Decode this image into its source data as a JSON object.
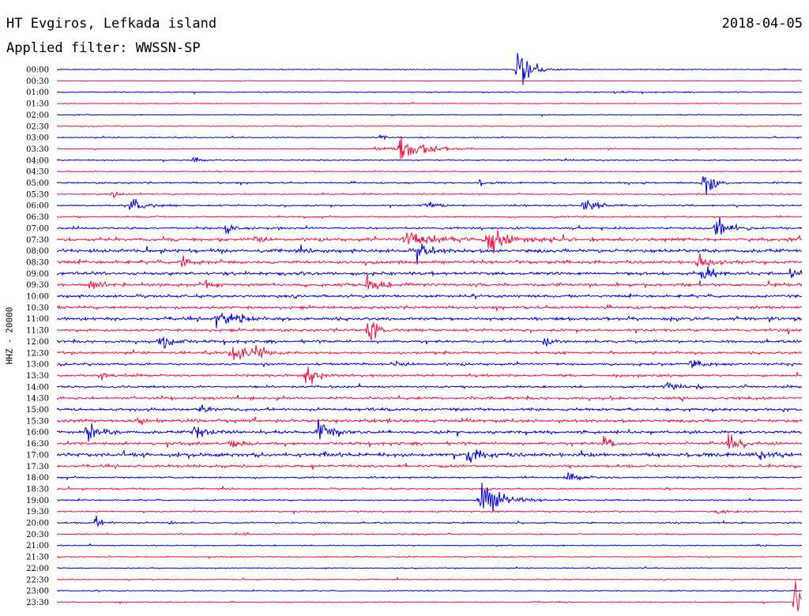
{
  "header": {
    "station": "HT Evgiros, Lefkada island",
    "filter": "Applied filter: WWSSN-SP",
    "date": "2018-04-05"
  },
  "axis_label": "HHZ - 20000",
  "colors": {
    "blue": "#0000dd",
    "red": "#ee1144"
  },
  "chart_data": {
    "type": "line",
    "title": "HT Evgiros, Lefkada island",
    "subtitle": "Applied filter: WWSSN-SP",
    "date": "2018-04-05",
    "ylabel": "HHZ - 20000",
    "row_labels": [
      "00:00",
      "00:30",
      "01:00",
      "01:30",
      "02:00",
      "02:30",
      "03:00",
      "03:30",
      "04:00",
      "04:30",
      "05:00",
      "05:30",
      "06:00",
      "06:30",
      "07:00",
      "07:30",
      "08:00",
      "08:30",
      "09:00",
      "09:30",
      "10:00",
      "10:30",
      "11:00",
      "11:30",
      "12:00",
      "12:30",
      "13:00",
      "13:30",
      "14:00",
      "14:30",
      "15:00",
      "15:30",
      "16:00",
      "16:30",
      "17:00",
      "17:30",
      "18:00",
      "18:30",
      "19:00",
      "19:30",
      "20:00",
      "20:30",
      "21:00",
      "21:30",
      "22:00",
      "22:30",
      "23:00",
      "23:30"
    ],
    "noise_level": [
      0.5,
      0.4,
      0.6,
      0.5,
      0.5,
      0.5,
      0.6,
      0.6,
      0.7,
      0.6,
      0.9,
      0.8,
      0.9,
      0.9,
      1.2,
      1.8,
      2.0,
      1.8,
      1.8,
      1.8,
      1.6,
      1.6,
      1.8,
      1.5,
      1.5,
      1.4,
      1.3,
      1.3,
      1.2,
      1.6,
      1.6,
      1.8,
      1.7,
      1.6,
      2.2,
      1.5,
      1.0,
      0.9,
      0.8,
      0.8,
      0.8,
      0.7,
      0.6,
      0.6,
      0.6,
      0.6,
      0.6,
      0.6
    ],
    "events": [
      {
        "row": 0,
        "minute": 18.5,
        "amp": 52,
        "dur": 1.2
      },
      {
        "row": 2,
        "minute": 22.5,
        "amp": 4,
        "dur": 0.6
      },
      {
        "row": 6,
        "minute": 13.0,
        "amp": 4,
        "dur": 1.0
      },
      {
        "row": 7,
        "minute": 13.8,
        "amp": 26,
        "dur": 2.2
      },
      {
        "row": 7,
        "minute": 12.8,
        "amp": 5,
        "dur": 1.4
      },
      {
        "row": 8,
        "minute": 5.5,
        "amp": 5,
        "dur": 0.6
      },
      {
        "row": 10,
        "minute": 26.0,
        "amp": 28,
        "dur": 1.0
      },
      {
        "row": 10,
        "minute": 17.0,
        "amp": 4,
        "dur": 1.0
      },
      {
        "row": 11,
        "minute": 2.2,
        "amp": 6,
        "dur": 0.6
      },
      {
        "row": 12,
        "minute": 3.0,
        "amp": 16,
        "dur": 1.2
      },
      {
        "row": 12,
        "minute": 14.8,
        "amp": 10,
        "dur": 1.0
      },
      {
        "row": 12,
        "minute": 21.2,
        "amp": 16,
        "dur": 1.2
      },
      {
        "row": 14,
        "minute": 6.8,
        "amp": 8,
        "dur": 1.0
      },
      {
        "row": 14,
        "minute": 26.5,
        "amp": 30,
        "dur": 1.0
      },
      {
        "row": 15,
        "minute": 14.0,
        "amp": 14,
        "dur": 3.0
      },
      {
        "row": 15,
        "minute": 17.3,
        "amp": 24,
        "dur": 2.0
      },
      {
        "row": 15,
        "minute": 8.0,
        "amp": 10,
        "dur": 0.6
      },
      {
        "row": 16,
        "minute": 14.5,
        "amp": 12,
        "dur": 1.5
      },
      {
        "row": 17,
        "minute": 5.0,
        "amp": 8,
        "dur": 1.0
      },
      {
        "row": 17,
        "minute": 25.8,
        "amp": 18,
        "dur": 1.0
      },
      {
        "row": 18,
        "minute": 26.0,
        "amp": 14,
        "dur": 1.0
      },
      {
        "row": 18,
        "minute": 29.5,
        "amp": 10,
        "dur": 0.6
      },
      {
        "row": 19,
        "minute": 1.3,
        "amp": 10,
        "dur": 1.2
      },
      {
        "row": 19,
        "minute": 12.5,
        "amp": 22,
        "dur": 1.0
      },
      {
        "row": 19,
        "minute": 6.0,
        "amp": 8,
        "dur": 0.5
      },
      {
        "row": 22,
        "minute": 6.4,
        "amp": 14,
        "dur": 1.2
      },
      {
        "row": 22,
        "minute": 7.0,
        "amp": 6,
        "dur": 1.5
      },
      {
        "row": 23,
        "minute": 12.5,
        "amp": 30,
        "dur": 0.8
      },
      {
        "row": 24,
        "minute": 4.2,
        "amp": 18,
        "dur": 1.0
      },
      {
        "row": 24,
        "minute": 19.6,
        "amp": 16,
        "dur": 1.0
      },
      {
        "row": 25,
        "minute": 7.0,
        "amp": 22,
        "dur": 1.5
      },
      {
        "row": 25,
        "minute": 8.0,
        "amp": 6,
        "dur": 1.5
      },
      {
        "row": 26,
        "minute": 13.5,
        "amp": 6,
        "dur": 1.0
      },
      {
        "row": 26,
        "minute": 25.5,
        "amp": 20,
        "dur": 1.0
      },
      {
        "row": 27,
        "minute": 10.0,
        "amp": 20,
        "dur": 1.0
      },
      {
        "row": 27,
        "minute": 1.8,
        "amp": 6,
        "dur": 1.0
      },
      {
        "row": 28,
        "minute": 24.5,
        "amp": 6,
        "dur": 1.5
      },
      {
        "row": 30,
        "minute": 5.8,
        "amp": 6,
        "dur": 1.0
      },
      {
        "row": 31,
        "minute": 3.2,
        "amp": 10,
        "dur": 1.0
      },
      {
        "row": 32,
        "minute": 1.2,
        "amp": 22,
        "dur": 1.2
      },
      {
        "row": 32,
        "minute": 5.5,
        "amp": 18,
        "dur": 1.2
      },
      {
        "row": 32,
        "minute": 10.5,
        "amp": 22,
        "dur": 1.2
      },
      {
        "row": 33,
        "minute": 7.0,
        "amp": 8,
        "dur": 1.0
      },
      {
        "row": 33,
        "minute": 22.0,
        "amp": 10,
        "dur": 1.2
      },
      {
        "row": 33,
        "minute": 27.0,
        "amp": 22,
        "dur": 1.0
      },
      {
        "row": 34,
        "minute": 16.5,
        "amp": 14,
        "dur": 1.5
      },
      {
        "row": 34,
        "minute": 28.2,
        "amp": 8,
        "dur": 1.5
      },
      {
        "row": 36,
        "minute": 20.5,
        "amp": 7,
        "dur": 1.5
      },
      {
        "row": 38,
        "minute": 17.0,
        "amp": 34,
        "dur": 2.0
      },
      {
        "row": 39,
        "minute": 26.5,
        "amp": 5,
        "dur": 1.5
      },
      {
        "row": 40,
        "minute": 1.5,
        "amp": 8,
        "dur": 1.0
      },
      {
        "row": 40,
        "minute": 4.5,
        "amp": 5,
        "dur": 0.6
      },
      {
        "row": 41,
        "minute": 7.5,
        "amp": 5,
        "dur": 0.6
      },
      {
        "row": 42,
        "minute": 28.2,
        "amp": 4,
        "dur": 0.5
      },
      {
        "row": 47,
        "minute": 29.7,
        "amp": 40,
        "dur": 0.6
      }
    ]
  }
}
